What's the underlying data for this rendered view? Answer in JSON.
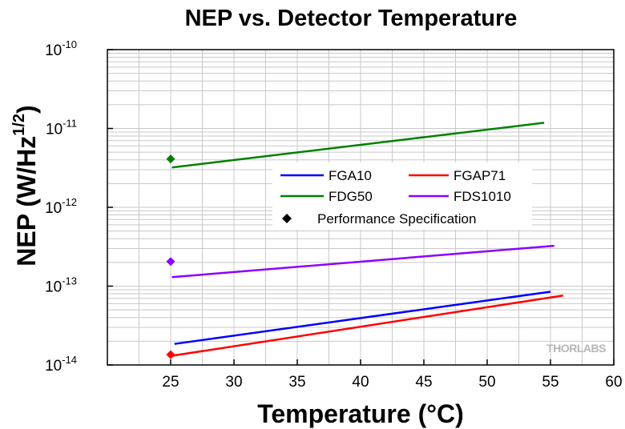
{
  "chart_data": {
    "type": "line",
    "title": "NEP vs. Detector Temperature",
    "xlabel": "Temperature (°C)",
    "ylabel": "NEP (W/Hz",
    "ylabel_sup": "1/2",
    "ylabel_close": ")",
    "xlim": [
      20,
      60
    ],
    "ylim": [
      1e-14,
      1e-10
    ],
    "y_scale": "log",
    "grid": true,
    "x_ticks": [
      25,
      30,
      35,
      40,
      45,
      50,
      55,
      60
    ],
    "y_ticks": [
      {
        "value": 1e-14,
        "base": "10",
        "exp": "-14"
      },
      {
        "value": 1e-13,
        "base": "10",
        "exp": "-13"
      },
      {
        "value": 1e-12,
        "base": "10",
        "exp": "-12"
      },
      {
        "value": 1e-11,
        "base": "10",
        "exp": "-11"
      },
      {
        "value": 1e-10,
        "base": "10",
        "exp": "-10"
      }
    ],
    "series": [
      {
        "name": "FGA10",
        "color": "#0000ff",
        "x": [
          25.3,
          55
        ],
        "y": [
          1.85e-14,
          8.5e-14
        ]
      },
      {
        "name": "FGAP71",
        "color": "#ff0000",
        "x": [
          25,
          56
        ],
        "y": [
          1.3e-14,
          7.6e-14
        ]
      },
      {
        "name": "FDG50",
        "color": "#008000",
        "x": [
          25.1,
          54.5
        ],
        "y": [
          3.2e-12,
          1.18e-11
        ]
      },
      {
        "name": "FDS1010",
        "color": "#8b00ff",
        "x": [
          25.1,
          55.3
        ],
        "y": [
          1.3e-13,
          3.25e-13
        ]
      }
    ],
    "markers": [
      {
        "series": "FGAP71",
        "x": 25,
        "y": 1.35e-14,
        "color": "#ff0000"
      },
      {
        "series": "FDG50",
        "x": 25,
        "y": 4.1e-12,
        "color": "#008000"
      },
      {
        "series": "FDS1010",
        "x": 25,
        "y": 2.05e-13,
        "color": "#8b00ff"
      }
    ],
    "legend": {
      "placement": "center",
      "entries": [
        {
          "label": "FGA10",
          "color": "#0000ff",
          "kind": "line"
        },
        {
          "label": "FGAP71",
          "color": "#ff0000",
          "kind": "line"
        },
        {
          "label": "FDG50",
          "color": "#008000",
          "kind": "line"
        },
        {
          "label": "FDS1010",
          "color": "#8b00ff",
          "kind": "line"
        },
        {
          "label": "Performance Specification",
          "color": "#000000",
          "kind": "diamond"
        }
      ]
    },
    "watermark": "THORLABS"
  }
}
